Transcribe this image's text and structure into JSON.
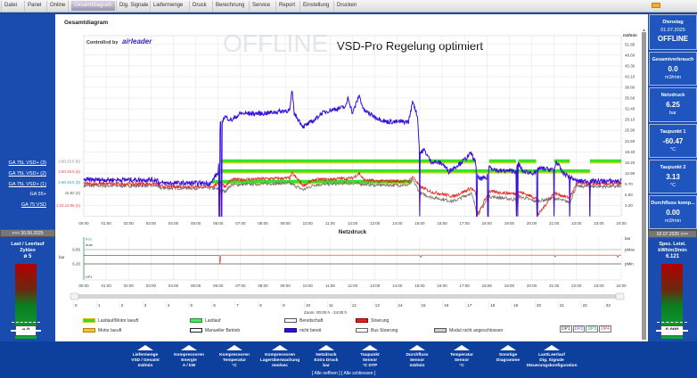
{
  "menu": [
    "Datei",
    "Panel",
    "Online",
    "Gesamtdiagram",
    "Dig. Signale",
    "Liefermenge",
    "Druck",
    "Berechnung",
    "Service",
    "Report",
    "Einstellung",
    "Drucken"
  ],
  "active_menu": "Gesamtdiagram",
  "main": {
    "title": "Gesamtdiagram",
    "controlled_by": "Controlled by",
    "brand": "airleader",
    "watermark": "OFFLINE",
    "annotation": "VSD-Pro Regelung optimiert"
  },
  "left": {
    "compressors": [
      "GA 75L VSD+ (3)",
      "GA 75L VSD+ (2)",
      "GA 75L VSD+ (1)",
      "GA 55+",
      "GA 75 VSD"
    ],
    "date_prev": "<<< 30.06.2025",
    "gauge": {
      "label1": "Last / Leerlauf",
      "label2": "Zyklen",
      "avg": "ø 5",
      "box": "ø 0"
    }
  },
  "right": {
    "cards": [
      {
        "title": "Dienstag",
        "value": "01.07.2025",
        "unit": "OFFLINE"
      },
      {
        "title": "Gesamtverbrauch",
        "value": "0.0",
        "unit": "m3/min"
      },
      {
        "title": "Netzdruck",
        "value": "6.25",
        "unit": "bar"
      },
      {
        "title": "Taupunkt 1",
        "value": "-60.47",
        "unit": "°C"
      },
      {
        "title": "Taupunkt 2",
        "value": "3.13",
        "unit": "°C"
      },
      {
        "title": "Durchfluss komp...",
        "value": "0.00",
        "unit": "m3/min"
      }
    ],
    "date_next": "02.07.2025 >>>",
    "gauge": {
      "label1": "Spez. Leist.",
      "label2": "kWh/m3/min",
      "avg": "6.121",
      "box": "0.000"
    }
  },
  "chart_data": [
    {
      "type": "line",
      "unit_label": "m3/min",
      "x_ticks": [
        "00:00",
        "01:00",
        "02:00",
        "03:00",
        "04:00",
        "05:00",
        "06:00",
        "07:00",
        "08:00",
        "09:00",
        "10:00",
        "11:00",
        "12:00",
        "13:00",
        "14:00",
        "15:00",
        "16:00",
        "17:00",
        "18:00",
        "19:00",
        "20:00",
        "21:00",
        "22:00",
        "23:00",
        "24:00"
      ],
      "y_ticks": [
        "3.20",
        "6.50",
        "9.70",
        "12.90",
        "16.20",
        "19.40",
        "22.60",
        "25.90",
        "29.10",
        "32.40",
        "35.60",
        "38.80",
        "42.10",
        "45.30",
        "48.60",
        "51.80"
      ],
      "ylim": [
        0,
        54.4
      ],
      "status_labels": [
        {
          "text": "2.60-15.5 (5)",
          "color": "#888888",
          "level": 16.5
        },
        {
          "text": "2.60-15.5 (4)",
          "color": "#e04040",
          "level": 13.5
        },
        {
          "text": "2.60-15.5 (3)",
          "color": "#20a0a0",
          "level": 10.3
        },
        {
          "text": "16.82 (2)",
          "color": "#555555",
          "level": 7.0
        },
        {
          "text": "2.24.14.99 (1)",
          "color": "#e04040",
          "level": 3.3
        }
      ],
      "status_bars": [
        {
          "level": 16.5,
          "segments": [
            [
              6.1,
              17.5
            ],
            [
              18.1,
              19.3
            ],
            [
              19.4,
              20.2
            ],
            [
              21.0,
              21.7
            ],
            [
              22.6,
              24.0
            ]
          ]
        },
        {
          "level": 13.5,
          "segments": [
            [
              6.1,
              22.6
            ]
          ]
        },
        {
          "level": 10.3,
          "segments": [
            [
              5.75,
              14.65
            ]
          ]
        }
      ],
      "series": [
        {
          "color": "#3a10e0",
          "points": [
            [
              0,
              11
            ],
            [
              3.3,
              11
            ],
            [
              3.35,
              10
            ],
            [
              5.7,
              10
            ],
            [
              5.85,
              12
            ],
            [
              6.0,
              13
            ],
            [
              6.1,
              28
            ],
            [
              6.3,
              30
            ],
            [
              6.6,
              29
            ],
            [
              7,
              31
            ],
            [
              8,
              31
            ],
            [
              9.2,
              32
            ],
            [
              9.3,
              38
            ],
            [
              9.4,
              31
            ],
            [
              9.8,
              27
            ],
            [
              10.3,
              29
            ],
            [
              10.6,
              31
            ],
            [
              11,
              32
            ],
            [
              11.7,
              33
            ],
            [
              11.8,
              36
            ],
            [
              12,
              31
            ],
            [
              12.3,
              36.5
            ],
            [
              12.5,
              32
            ],
            [
              13,
              30
            ],
            [
              13.5,
              28.5
            ],
            [
              14.5,
              28.5
            ],
            [
              14.7,
              34.8
            ],
            [
              14.9,
              30
            ],
            [
              15,
              19
            ],
            [
              15.2,
              20
            ],
            [
              15.5,
              16.5
            ],
            [
              16,
              16
            ],
            [
              16.3,
              13.5
            ],
            [
              16.6,
              15
            ],
            [
              17,
              17
            ],
            [
              17.3,
              19
            ],
            [
              17.5,
              16
            ],
            [
              17.6,
              11.4
            ],
            [
              18,
              11.4
            ],
            [
              18.1,
              15
            ],
            [
              18.5,
              13.7
            ],
            [
              19.3,
              13.7
            ],
            [
              19.4,
              16
            ],
            [
              19.6,
              13.5
            ],
            [
              20.2,
              13
            ],
            [
              20.3,
              14.5
            ],
            [
              21,
              14
            ],
            [
              21.1,
              16.5
            ],
            [
              21.4,
              13
            ],
            [
              21.7,
              12
            ],
            [
              22,
              10.6
            ],
            [
              24,
              10.6
            ]
          ]
        },
        {
          "color": "#e8281e",
          "points": [
            [
              0,
              9.8
            ],
            [
              3.3,
              9.8
            ],
            [
              3.35,
              9
            ],
            [
              5.7,
              9
            ],
            [
              6.1,
              10
            ],
            [
              6.3,
              9
            ],
            [
              6.6,
              11
            ],
            [
              9.2,
              11.5
            ],
            [
              9.3,
              13
            ],
            [
              9.8,
              9.3
            ],
            [
              10.3,
              11
            ],
            [
              12,
              11.5
            ],
            [
              12.3,
              13
            ],
            [
              12.5,
              11
            ],
            [
              13,
              10.6
            ],
            [
              14.5,
              10.6
            ],
            [
              14.7,
              12
            ],
            [
              15,
              9
            ],
            [
              15.5,
              7.4
            ],
            [
              16.5,
              6
            ],
            [
              17,
              7.5
            ],
            [
              17.3,
              8.5
            ],
            [
              17.5,
              7
            ],
            [
              17.6,
              0.5
            ],
            [
              18.1,
              7.5
            ],
            [
              18.5,
              7.2
            ],
            [
              19.3,
              6.8
            ],
            [
              19.4,
              7.5
            ],
            [
              20.2,
              5.5
            ],
            [
              20.3,
              0.5
            ],
            [
              21,
              7
            ],
            [
              21.7,
              5.5
            ],
            [
              22,
              9.8
            ],
            [
              24,
              9.8
            ]
          ]
        },
        {
          "color": "#777777",
          "points": [
            [
              0,
              9.2
            ],
            [
              3.3,
              9.2
            ],
            [
              3.35,
              8.5
            ],
            [
              5.7,
              8.5
            ],
            [
              6.1,
              8
            ],
            [
              6.3,
              7.5
            ],
            [
              6.6,
              9.5
            ],
            [
              9.2,
              10
            ],
            [
              9.8,
              8
            ],
            [
              10.3,
              9.5
            ],
            [
              12,
              10
            ],
            [
              13,
              9.4
            ],
            [
              14.5,
              9.4
            ],
            [
              14.7,
              11
            ],
            [
              15,
              7
            ],
            [
              15.5,
              5.8
            ],
            [
              16.5,
              4.5
            ],
            [
              17.3,
              7
            ],
            [
              17.6,
              0.5
            ],
            [
              18.1,
              6
            ],
            [
              19.3,
              5
            ],
            [
              19.4,
              6
            ],
            [
              20.2,
              4.5
            ],
            [
              21,
              5.5
            ],
            [
              21.7,
              4.2
            ],
            [
              22,
              9
            ],
            [
              24,
              9
            ]
          ]
        }
      ],
      "drops": [
        6.05,
        6.15,
        15.0,
        17.55,
        18.05,
        19.32,
        19.38,
        20.25,
        21.0,
        21.7,
        22.6
      ]
    },
    {
      "type": "line",
      "title": "Netzdruck",
      "unit_label": "bar",
      "axis_label": "bar",
      "y_ticks": [
        "6.85",
        "6.20"
      ],
      "limits": {
        "pMax_label": "pMax",
        "pMin_label": "pMin",
        "pMax": 6.85,
        "pMin": 6.2
      },
      "markers": [
        "Run",
        "Auto",
        "DP1"
      ],
      "series": [
        {
          "color": "#e03030",
          "points": [
            [
              0,
              6.58
            ],
            [
              6.05,
              6.58
            ],
            [
              6.08,
              6.2
            ],
            [
              6.12,
              6.6
            ],
            [
              15,
              6.6
            ],
            [
              15.05,
              6.5
            ],
            [
              15.1,
              6.6
            ],
            [
              21,
              6.6
            ],
            [
              21.05,
              6.52
            ],
            [
              21.1,
              6.6
            ],
            [
              23.8,
              6.6
            ],
            [
              23.85,
              6.5
            ],
            [
              23.9,
              6.6
            ],
            [
              24,
              6.6
            ]
          ]
        }
      ]
    }
  ],
  "slider": {
    "hours": [
      "0",
      "1",
      "2",
      "3",
      "4",
      "5",
      "6",
      "7",
      "8",
      "9",
      "10",
      "11",
      "12",
      "13",
      "14",
      "15",
      "16",
      "17",
      "18",
      "19",
      "20",
      "21",
      "22",
      "23"
    ],
    "zoom_text": "Zoom: 00:00 h - 24:00 h"
  },
  "legend": [
    {
      "label": "Lastlauf/Motor laeuft",
      "fill": "#2ee02e",
      "border": "#d8c000"
    },
    {
      "label": "Lastlauf",
      "fill": "#44ee66",
      "border": "#2a8a2a"
    },
    {
      "label": "Bereitschaft",
      "fill": "#ffffff",
      "border": "#555555"
    },
    {
      "label": "Stoerung",
      "fill": "#e82020",
      "border": "#900000"
    },
    {
      "label": "Motor laeuft",
      "fill": "#f4c430",
      "border": "#b08000"
    },
    {
      "label": "Manueller Betrieb",
      "fill": "#ffffff",
      "border": "#222222"
    },
    {
      "label": "nicht bereit",
      "fill": "#2a10d8",
      "border": "#1a0a90"
    },
    {
      "label": "Bus Stoerung",
      "fill": "#ffffff",
      "border": "#666666"
    },
    {
      "label": "Modul nicht angeschlossen",
      "fill": "#d0d0d0",
      "border": "#555555"
    }
  ],
  "dp_buttons": [
    {
      "label": "DP1",
      "color": "#333333"
    },
    {
      "label": "DP2",
      "color": "#6a4ae0"
    },
    {
      "label": "DP3",
      "color": "#2aa060"
    },
    {
      "label": "DP4",
      "color": "#d04040"
    }
  ],
  "bottom_buttons": [
    [
      "Liefermenge",
      "VSD / Gesamt",
      "m3/min"
    ],
    [
      "Kompressoren",
      "Energie",
      "A / kW"
    ],
    [
      "Kompressoren",
      "Temperatur",
      "°C"
    ],
    [
      "Kompressoren",
      "Lagerüberwachung",
      "mm/sec"
    ],
    [
      "Netzdruck",
      "Extra Druck",
      "bar"
    ],
    [
      "Taupunkt",
      "Sensor",
      "°C DTP"
    ],
    [
      "Durchfluss",
      "Sensor",
      "m3/min"
    ],
    [
      "Temperatur",
      "Sensor",
      "°C"
    ],
    [
      "Sonstige",
      "Diagramme",
      ""
    ],
    [
      "Last/Leerlauf",
      "Dig. Signale",
      "Steuerungskonfiguration"
    ]
  ],
  "bottom_links": {
    "open": "[ Alle oeffnen ]",
    "close": "[ Alle schliessen ]"
  }
}
